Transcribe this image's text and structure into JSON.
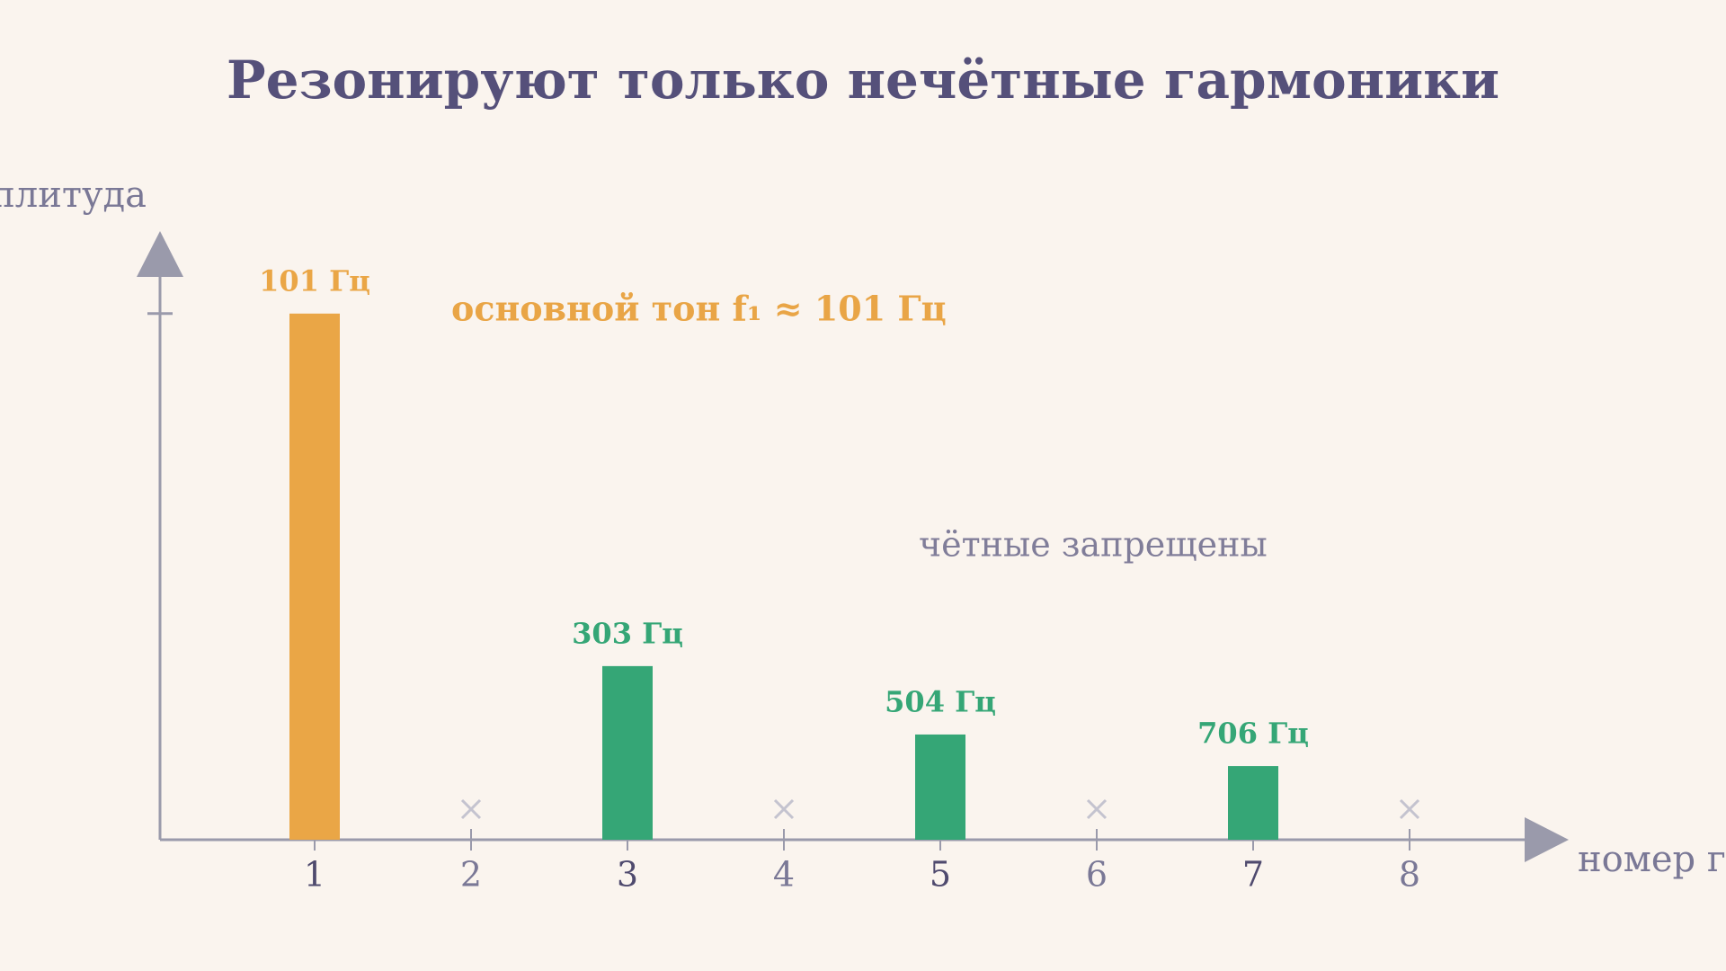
{
  "chart_data": {
    "type": "bar",
    "title": "Резонируют только нечётные гармоники",
    "y_label": "амплитуда",
    "x_label": "номер гармоники",
    "categories": [
      "1",
      "2",
      "3",
      "4",
      "5",
      "6",
      "7",
      "8"
    ],
    "values": [
      1,
      null,
      0.33,
      null,
      0.2,
      null,
      0.14,
      null
    ],
    "bar_labels": [
      "101 Гц",
      null,
      "303 Гц",
      null,
      "504 Гц",
      null,
      "706 Гц",
      null
    ],
    "colors": [
      "#eaa646",
      null,
      "#35a676",
      null,
      "#35a676",
      null,
      "#35a676",
      null
    ],
    "ylim": [
      0,
      1.15
    ],
    "yticks": [
      1
    ],
    "annotations": [
      "основной тон f₁ ≈ 101 Гц",
      "чётные запрещены"
    ]
  }
}
